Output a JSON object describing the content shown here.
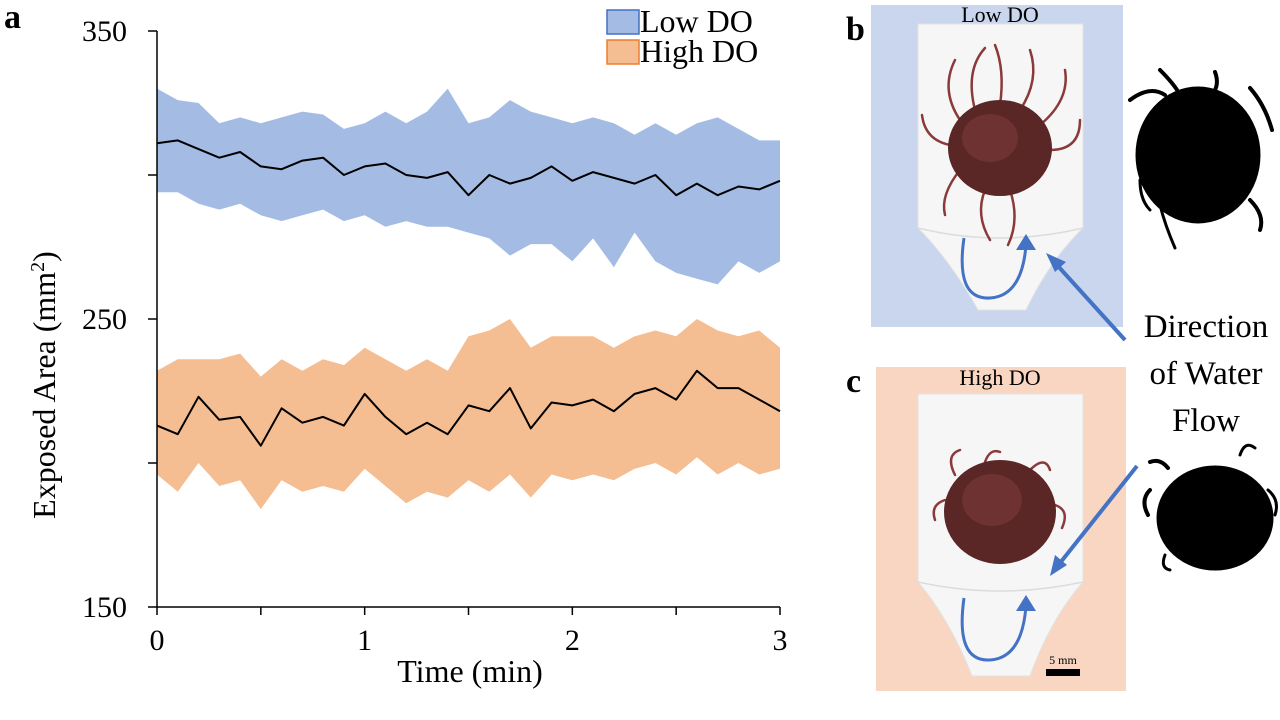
{
  "panel_letters": {
    "a": "a",
    "b": "b",
    "c": "c"
  },
  "chart_data": {
    "type": "line",
    "title": "",
    "xlabel": "Time (min)",
    "ylabel_main": "Exposed Area (mm",
    "ylabel_sup": "2",
    "ylabel_end": ")",
    "xlim": [
      0,
      3
    ],
    "ylim": [
      150,
      350
    ],
    "xticks": [
      0,
      1,
      2,
      3
    ],
    "xticks_minor": [
      0.5,
      1.5,
      2.5
    ],
    "yticks": [
      150,
      250,
      350
    ],
    "yticks_minor": [
      200,
      300
    ],
    "legend_position": "top-right",
    "series": [
      {
        "name": "Low DO",
        "color": "#000000",
        "band_color": "#a4bce4",
        "x": [
          0,
          0.1,
          0.2,
          0.3,
          0.4,
          0.5,
          0.6,
          0.7,
          0.8,
          0.9,
          1.0,
          1.1,
          1.2,
          1.3,
          1.4,
          1.5,
          1.6,
          1.7,
          1.8,
          1.9,
          2.0,
          2.1,
          2.2,
          2.3,
          2.4,
          2.5,
          2.6,
          2.7,
          2.8,
          2.9,
          3.0
        ],
        "mean": [
          311,
          312,
          309,
          306,
          308,
          303,
          302,
          305,
          306,
          300,
          303,
          304,
          300,
          299,
          301,
          293,
          300,
          297,
          299,
          303,
          298,
          301,
          299,
          297,
          300,
          293,
          297,
          293,
          296,
          295,
          298
        ],
        "upper": [
          330,
          326,
          325,
          318,
          320,
          318,
          320,
          322,
          321,
          316,
          318,
          322,
          318,
          322,
          330,
          318,
          320,
          326,
          322,
          320,
          318,
          320,
          318,
          314,
          318,
          314,
          318,
          320,
          316,
          312,
          312
        ],
        "lower": [
          294,
          294,
          290,
          288,
          290,
          286,
          284,
          286,
          288,
          284,
          286,
          282,
          284,
          282,
          282,
          280,
          278,
          272,
          276,
          276,
          270,
          278,
          268,
          280,
          270,
          266,
          264,
          262,
          270,
          266,
          270
        ]
      },
      {
        "name": "High DO",
        "color": "#000000",
        "band_color": "#f5bd92",
        "x": [
          0,
          0.1,
          0.2,
          0.3,
          0.4,
          0.5,
          0.6,
          0.7,
          0.8,
          0.9,
          1.0,
          1.1,
          1.2,
          1.3,
          1.4,
          1.5,
          1.6,
          1.7,
          1.8,
          1.9,
          2.0,
          2.1,
          2.2,
          2.3,
          2.4,
          2.5,
          2.6,
          2.7,
          2.8,
          2.9,
          3.0
        ],
        "mean": [
          213,
          210,
          223,
          215,
          216,
          206,
          219,
          214,
          216,
          213,
          224,
          216,
          210,
          214,
          210,
          220,
          218,
          226,
          212,
          221,
          220,
          222,
          218,
          224,
          226,
          222,
          232,
          226,
          226,
          222,
          218
        ],
        "upper": [
          232,
          236,
          236,
          236,
          238,
          230,
          236,
          232,
          236,
          234,
          240,
          236,
          232,
          236,
          232,
          244,
          246,
          250,
          240,
          244,
          244,
          244,
          240,
          244,
          246,
          244,
          250,
          246,
          244,
          246,
          240
        ],
        "lower": [
          196,
          190,
          200,
          192,
          194,
          184,
          194,
          190,
          192,
          190,
          198,
          192,
          186,
          190,
          188,
          194,
          190,
          196,
          188,
          196,
          194,
          196,
          194,
          198,
          200,
          196,
          202,
          196,
          200,
          196,
          198
        ]
      }
    ]
  },
  "images": {
    "low_title": "Low DO",
    "high_title": "High DO",
    "low_bg": "#c9d6ee",
    "high_bg": "#f8d6c2",
    "arrow_color": "#4472c4",
    "scale_bar_label": "5 mm",
    "flow_line1": "Direction",
    "flow_line2": "of Water",
    "flow_line3": "Flow"
  }
}
